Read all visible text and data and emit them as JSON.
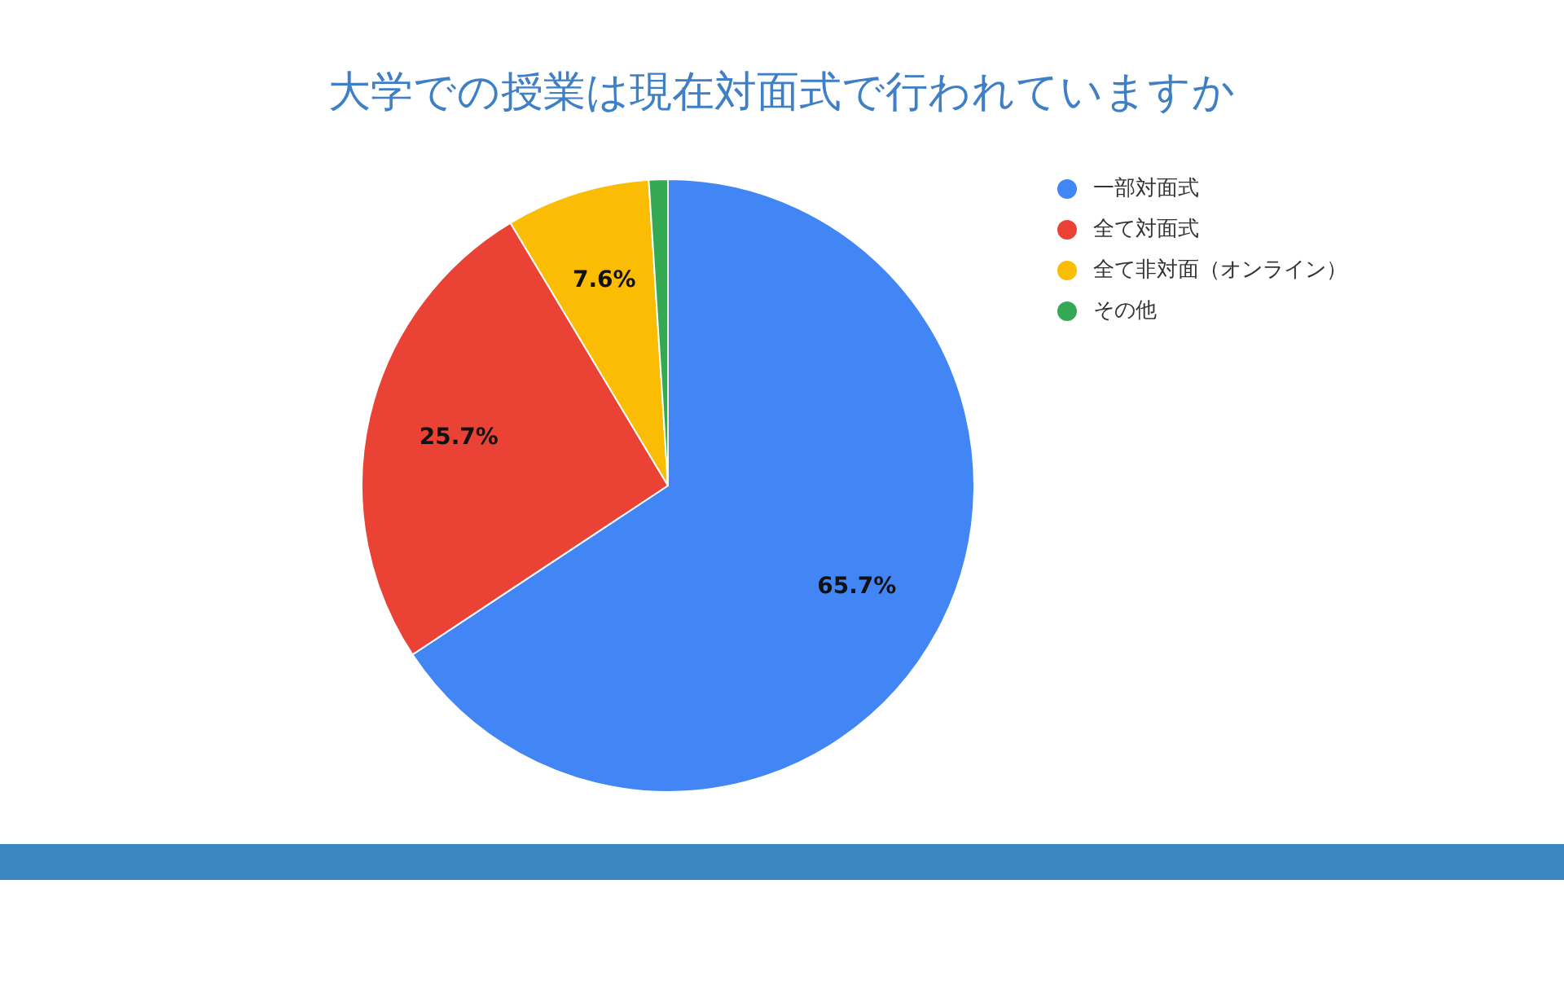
{
  "chart_data": {
    "type": "pie",
    "title": "大学での授業は現在対面式で行われていますか",
    "categories": [
      "一部対面式",
      "全て対面式",
      "全て非対面（オンライン）",
      "その他"
    ],
    "values": [
      65.7,
      25.7,
      7.6,
      1.0
    ],
    "colors": [
      "#4285f4",
      "#ea4335",
      "#fbbc04",
      "#34a853"
    ],
    "value_labels": [
      "65.7%",
      "25.7%",
      "7.6%",
      null
    ],
    "legend": "top right"
  }
}
